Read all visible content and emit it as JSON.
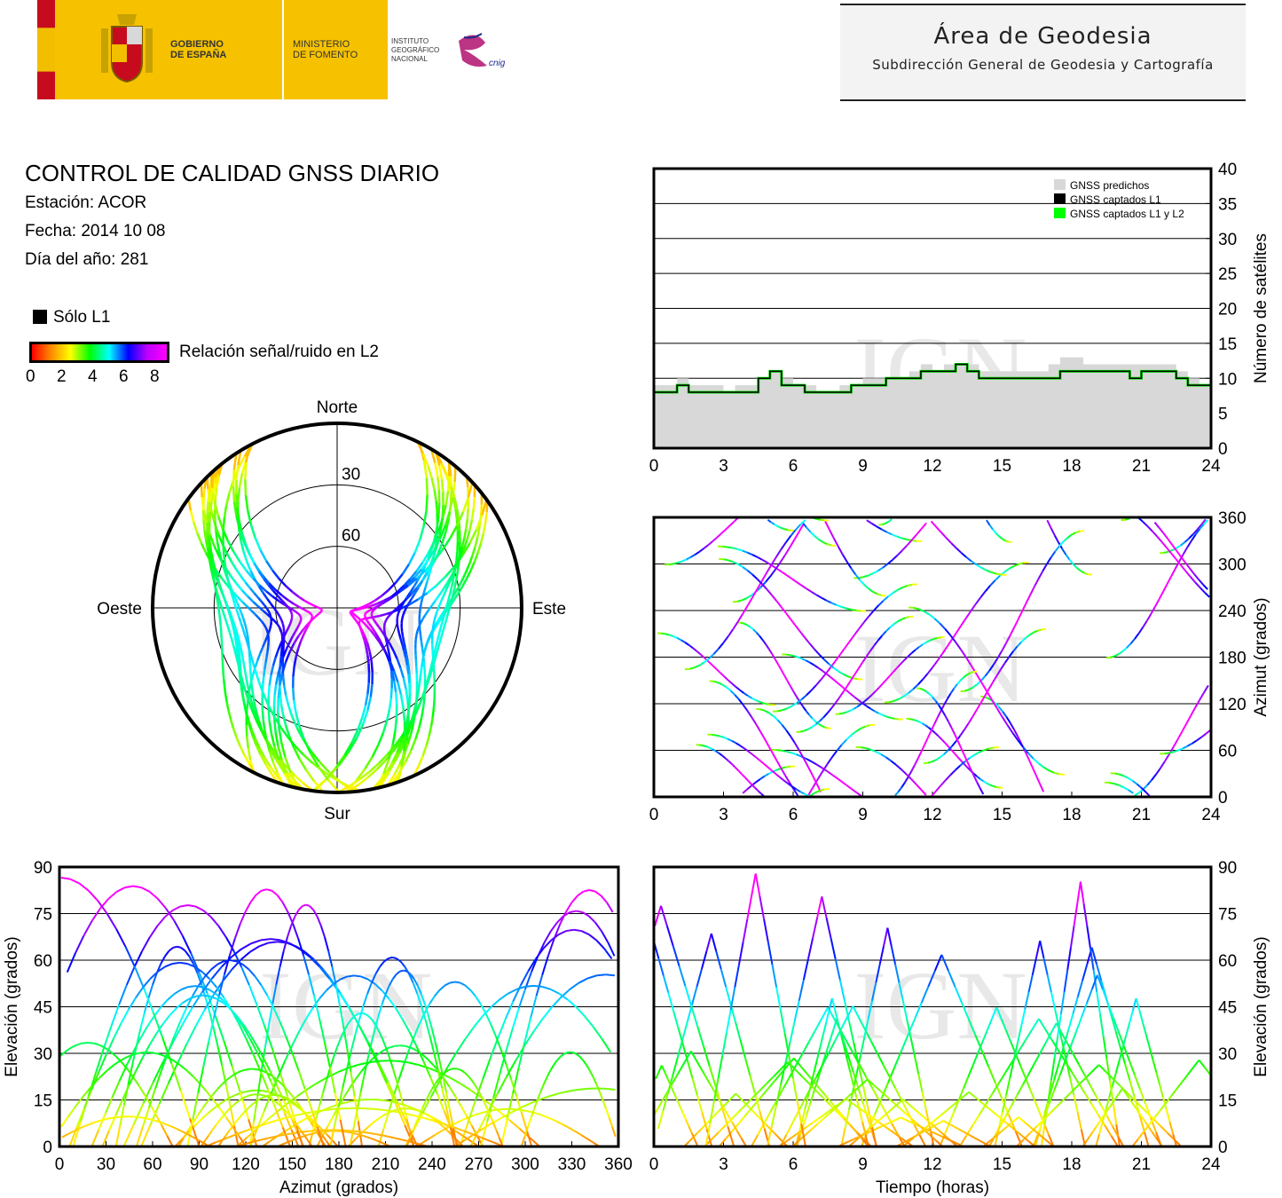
{
  "header": {
    "gobierno": "GOBIERNO\nDE ESPAÑA",
    "ministerio": "MINISTERIO\nDE FOMENTO",
    "instituto": "INSTITUTO\nGEOGRÁFICO\nNACIONAL",
    "cnig": "cnig",
    "area_title": "Área de Geodesia",
    "area_subtitle": "Subdirección General de Geodesia y Cartografía"
  },
  "report": {
    "title": "CONTROL DE CALIDAD GNSS DIARIO",
    "station": "Estación: ACOR",
    "date": "Fecha: 2014 10 08",
    "doy": "Día del año: 281"
  },
  "legend": {
    "l1_only": "Sólo L1",
    "snr_label": "Relación señal/ruido en L2",
    "snr_ticks": [
      "0",
      "2",
      "4",
      "6",
      "8"
    ],
    "colors": [
      "#ff0000",
      "#ff8c00",
      "#ffff00",
      "#00ff00",
      "#00ffff",
      "#0000ff",
      "#c000ff",
      "#ff00ff"
    ]
  },
  "watermark": "IGN",
  "chart_data": [
    {
      "type": "line",
      "name": "satellite-count",
      "ylabel": "Número de satélites",
      "x_ticks": [
        "0",
        "3",
        "6",
        "9",
        "12",
        "15",
        "18",
        "21",
        "24"
      ],
      "y_ticks": [
        "0",
        "5",
        "10",
        "15",
        "20",
        "25",
        "30",
        "35",
        "40"
      ],
      "xlim": [
        0,
        24
      ],
      "ylim": [
        0,
        40
      ],
      "legend": [
        "GNSS predichos",
        "GNSS captados L1",
        "GNSS captados L1 y L2"
      ],
      "legend_colors": [
        "#d8d8d8",
        "#000000",
        "#00ff00"
      ],
      "legend_position": "top-right",
      "x": [
        0,
        0.5,
        1,
        1.5,
        2,
        2.5,
        3,
        3.5,
        4,
        4.5,
        5,
        5.5,
        6,
        6.5,
        7,
        7.5,
        8,
        8.5,
        9,
        9.5,
        10,
        10.5,
        11,
        11.5,
        12,
        12.5,
        13,
        13.5,
        14,
        14.5,
        15,
        15.5,
        16,
        16.5,
        17,
        17.5,
        18,
        18.5,
        19,
        19.5,
        20,
        20.5,
        21,
        21.5,
        22,
        22.5,
        23,
        23.5,
        24
      ],
      "predicted": [
        9,
        9,
        10,
        9,
        9,
        9,
        8,
        9,
        9,
        10,
        11,
        10,
        9,
        9,
        8,
        8,
        9,
        9,
        10,
        10,
        10,
        10,
        11,
        12,
        11,
        12,
        12,
        12,
        11,
        11,
        11,
        11,
        11,
        11,
        12,
        13,
        13,
        12,
        12,
        12,
        12,
        12,
        12,
        12,
        12,
        11,
        10,
        9,
        9
      ],
      "captured_l1": [
        8,
        8,
        9,
        8,
        8,
        8,
        8,
        8,
        8,
        10,
        11,
        9,
        9,
        8,
        8,
        8,
        8,
        9,
        9,
        9,
        10,
        10,
        10,
        11,
        11,
        11,
        12,
        11,
        10,
        10,
        10,
        10,
        10,
        10,
        10,
        11,
        11,
        11,
        11,
        11,
        11,
        10,
        11,
        11,
        11,
        10,
        9,
        9,
        8
      ],
      "captured_l1_l2": [
        8,
        8,
        9,
        8,
        8,
        8,
        8,
        8,
        8,
        10,
        11,
        9,
        9,
        8,
        8,
        8,
        8,
        9,
        9,
        9,
        10,
        10,
        10,
        11,
        11,
        11,
        12,
        11,
        10,
        10,
        10,
        10,
        10,
        10,
        10,
        11,
        11,
        11,
        11,
        11,
        11,
        10,
        11,
        11,
        11,
        10,
        9,
        9,
        8
      ]
    },
    {
      "type": "scatter",
      "name": "skyplot",
      "labels": {
        "north": "Norte",
        "south": "Sur",
        "east": "Este",
        "west": "Oeste"
      },
      "rings": [
        "30",
        "60"
      ]
    },
    {
      "type": "scatter",
      "name": "azimuth-vs-time",
      "ylabel": "Azimut (grados)",
      "x_ticks": [
        "0",
        "3",
        "6",
        "9",
        "12",
        "15",
        "18",
        "21",
        "24"
      ],
      "y_ticks": [
        "0",
        "60",
        "120",
        "180",
        "240",
        "300",
        "360"
      ],
      "xlim": [
        0,
        24
      ],
      "ylim": [
        0,
        360
      ]
    },
    {
      "type": "scatter",
      "name": "elevation-vs-azimuth",
      "xlabel": "Azimut (grados)",
      "ylabel": "Elevación (grados)",
      "x_ticks": [
        "0",
        "30",
        "60",
        "90",
        "120",
        "150",
        "180",
        "210",
        "240",
        "270",
        "300",
        "330",
        "360"
      ],
      "y_ticks": [
        "0",
        "15",
        "30",
        "45",
        "60",
        "75",
        "90"
      ],
      "xlim": [
        0,
        360
      ],
      "ylim": [
        0,
        90
      ]
    },
    {
      "type": "scatter",
      "name": "elevation-vs-time",
      "xlabel": "Tiempo (horas)",
      "ylabel": "Elevación (grados)",
      "x_ticks": [
        "0",
        "3",
        "6",
        "9",
        "12",
        "15",
        "18",
        "21",
        "24"
      ],
      "y_ticks": [
        "0",
        "15",
        "30",
        "45",
        "60",
        "75",
        "90"
      ],
      "xlim": [
        0,
        24
      ],
      "ylim": [
        0,
        90
      ]
    }
  ]
}
